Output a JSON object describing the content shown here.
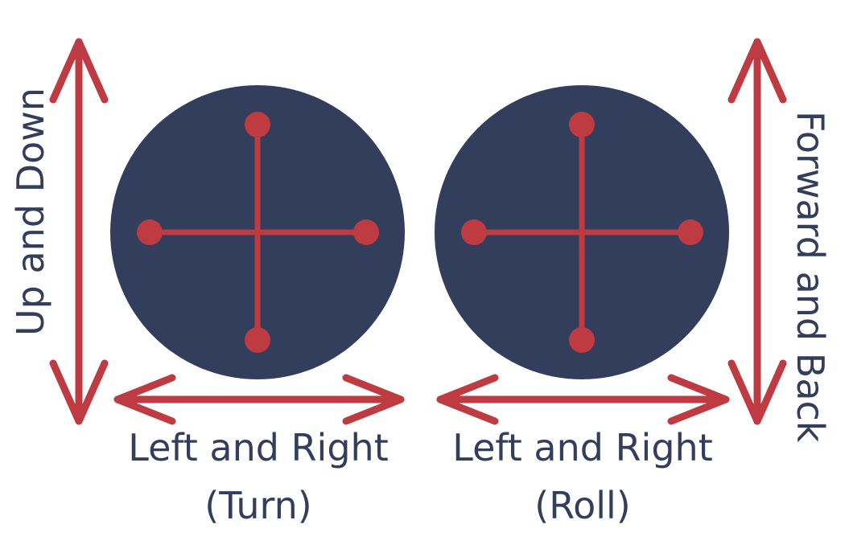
{
  "colors": {
    "stick_fill": "#323e5c",
    "arrow": "#bd3b41",
    "label": "#323e5c"
  },
  "left_stick": {
    "vertical_label": "Up and Down",
    "horizontal_label_line1": "Left and Right",
    "horizontal_label_line2": "(Turn)"
  },
  "right_stick": {
    "vertical_label": "Forward and Back",
    "horizontal_label_line1": "Left and Right",
    "horizontal_label_line2": "(Roll)"
  }
}
